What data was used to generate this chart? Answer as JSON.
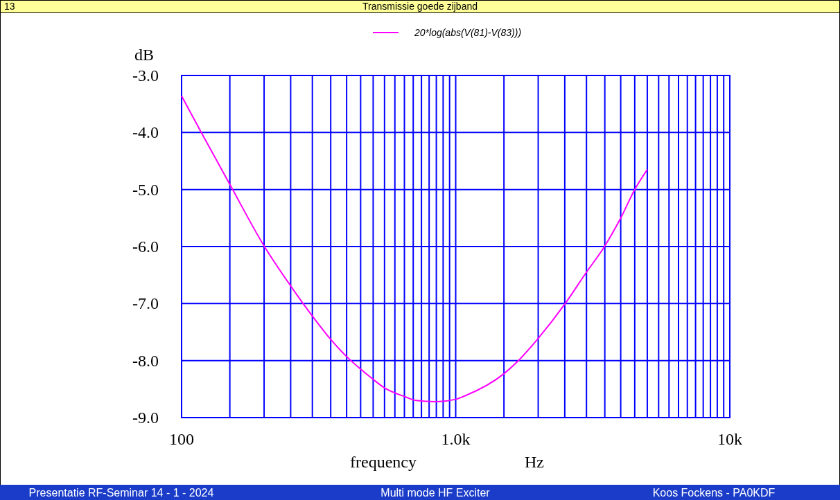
{
  "chart_data": {
    "type": "line",
    "title": "Transmissie goede zijband",
    "xlabel": "frequency Hz",
    "ylabel": "dB",
    "annotations": [
      "13",
      "Presentatie RF-Seminar 14 - 1 - 2024",
      "Multi mode HF Exciter",
      "Koos Fockens  -  PA0KDF"
    ],
    "log": "x",
    "grid": true,
    "legend": "top",
    "marker": "none",
    "line_style": "solid",
    "xlim": [
      100,
      10000
    ],
    "ylim": [
      -9,
      -3
    ],
    "xticks": [
      {
        "value": 100,
        "label": "100"
      },
      {
        "value": 150,
        "label": null
      },
      {
        "value": 200,
        "label": null
      },
      {
        "value": 250,
        "label": null
      },
      {
        "value": 300,
        "label": null
      },
      {
        "value": 350,
        "label": null
      },
      {
        "value": 400,
        "label": null
      },
      {
        "value": 450,
        "label": null
      },
      {
        "value": 500,
        "label": null
      },
      {
        "value": 550,
        "label": null
      },
      {
        "value": 600,
        "label": null
      },
      {
        "value": 650,
        "label": null
      },
      {
        "value": 700,
        "label": null
      },
      {
        "value": 750,
        "label": null
      },
      {
        "value": 800,
        "label": null
      },
      {
        "value": 850,
        "label": null
      },
      {
        "value": 900,
        "label": null
      },
      {
        "value": 950,
        "label": null
      },
      {
        "value": 1000,
        "label": "1.0k"
      },
      {
        "value": 1500,
        "label": null
      },
      {
        "value": 2000,
        "label": null
      },
      {
        "value": 2500,
        "label": null
      },
      {
        "value": 3000,
        "label": null
      },
      {
        "value": 3500,
        "label": null
      },
      {
        "value": 4000,
        "label": null
      },
      {
        "value": 4500,
        "label": null
      },
      {
        "value": 5000,
        "label": null
      },
      {
        "value": 5500,
        "label": null
      },
      {
        "value": 6000,
        "label": null
      },
      {
        "value": 6500,
        "label": null
      },
      {
        "value": 7000,
        "label": null
      },
      {
        "value": 7500,
        "label": null
      },
      {
        "value": 8000,
        "label": null
      },
      {
        "value": 8500,
        "label": null
      },
      {
        "value": 9000,
        "label": null
      },
      {
        "value": 9500,
        "label": null
      },
      {
        "value": 10000,
        "label": "10k"
      }
    ],
    "yticks": [
      {
        "value": -3,
        "label": "-3.0"
      },
      {
        "value": -4,
        "label": "-4.0"
      },
      {
        "value": -5,
        "label": "-5.0"
      },
      {
        "value": -6,
        "label": "-6.0"
      },
      {
        "value": -7,
        "label": "-7.0"
      },
      {
        "value": -8,
        "label": "-8.0"
      },
      {
        "value": -9,
        "label": "-9.0"
      }
    ],
    "series": [
      {
        "name": "20*log(abs(V(81)-V(83)))",
        "color": "#ff00ff",
        "x": [
          100,
          118,
          150,
          200,
          250,
          300,
          350,
          400,
          450,
          500,
          550,
          650,
          717,
          838,
          854,
          1000,
          1079,
          1500,
          1686,
          2000,
          2500,
          3000,
          3500,
          4000,
          4500,
          5000
        ],
        "values": [
          -3.36,
          -4.0,
          -4.91,
          -5.99,
          -6.69,
          -7.22,
          -7.63,
          -7.93,
          -8.15,
          -8.33,
          -8.48,
          -8.63,
          -8.7,
          -8.72,
          -8.72,
          -8.68,
          -8.62,
          -8.23,
          -8.01,
          -7.61,
          -7.01,
          -6.45,
          -5.99,
          -5.5,
          -5.0,
          -4.65
        ]
      }
    ]
  }
}
